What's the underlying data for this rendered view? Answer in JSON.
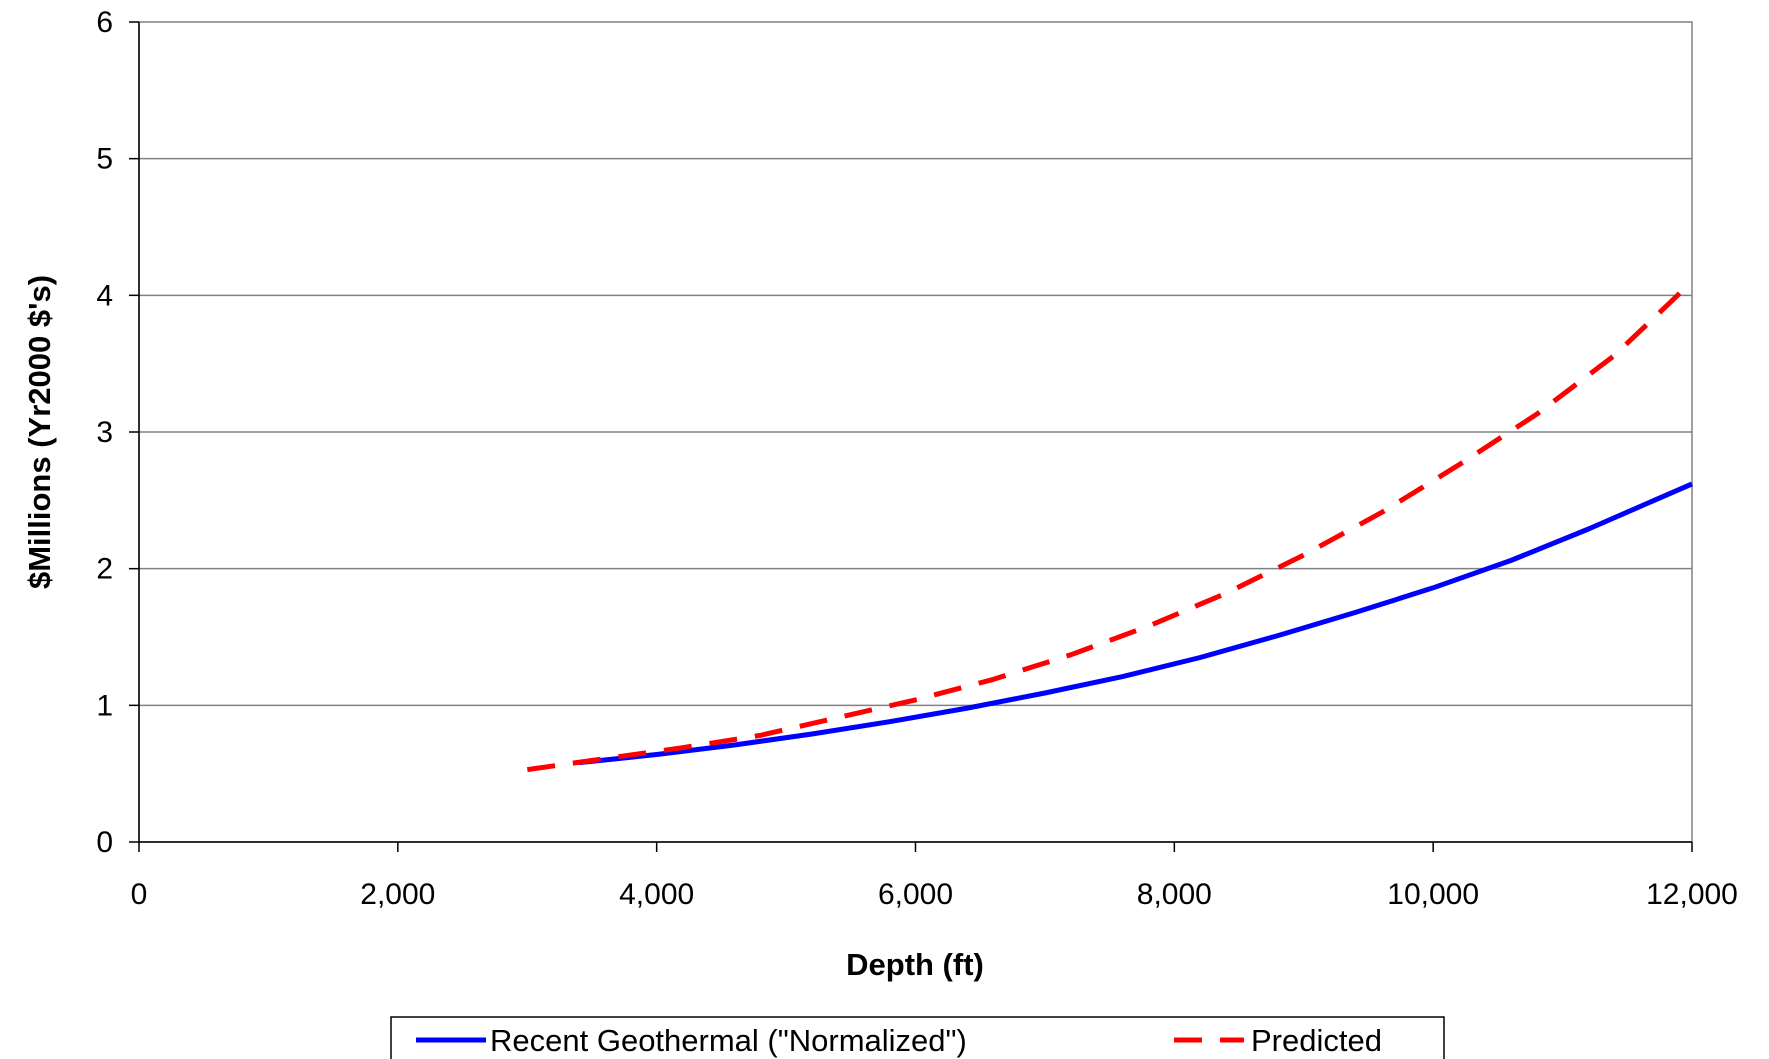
{
  "chart_data": {
    "type": "line",
    "xlabel": "Depth (ft)",
    "ylabel": "$Millions (Yr2000 $'s)",
    "xlim": [
      0,
      12000
    ],
    "ylim": [
      0,
      6
    ],
    "x_ticks": [
      "0",
      "2,000",
      "4,000",
      "6,000",
      "8,000",
      "10,000",
      "12,000"
    ],
    "x_tick_values": [
      0,
      2000,
      4000,
      6000,
      8000,
      10000,
      12000
    ],
    "y_ticks": [
      "0",
      "1",
      "2",
      "3",
      "4",
      "5",
      "6"
    ],
    "y_tick_values": [
      0,
      1,
      2,
      3,
      4,
      5,
      6
    ],
    "grid": "horizontal",
    "legend": "bottom",
    "series": [
      {
        "name": "Recent Geothermal (\"Normalized\")",
        "color": "#0000ff",
        "style": "solid",
        "x": [
          3400,
          4000,
          4600,
          5200,
          5800,
          6400,
          7000,
          7600,
          8200,
          8800,
          9400,
          10000,
          10600,
          11200,
          12000
        ],
        "y": [
          0.58,
          0.64,
          0.71,
          0.79,
          0.88,
          0.98,
          1.09,
          1.21,
          1.35,
          1.51,
          1.68,
          1.86,
          2.06,
          2.29,
          2.62
        ]
      },
      {
        "name": "Predicted",
        "color": "#ff0000",
        "style": "dashed",
        "x": [
          3000,
          3600,
          4200,
          4800,
          5400,
          6000,
          6600,
          7200,
          7800,
          8400,
          9000,
          9600,
          10200,
          10800,
          11400,
          12000
        ],
        "y": [
          0.53,
          0.61,
          0.69,
          0.78,
          0.91,
          1.04,
          1.19,
          1.37,
          1.58,
          1.82,
          2.1,
          2.41,
          2.76,
          3.13,
          3.56,
          4.1
        ]
      }
    ]
  }
}
